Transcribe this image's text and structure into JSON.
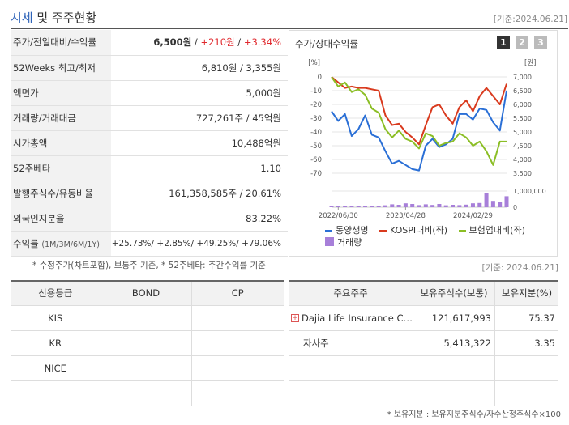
{
  "header": {
    "title_part1": "시세",
    "title_part2": " 및 주주현황",
    "date": "[기준:2024.06.21]"
  },
  "quote_rows": [
    {
      "label": "주가/전일대비/수익률",
      "price": "6,500원",
      "change": "+210원",
      "rate": "+3.34%"
    },
    {
      "label": "52Weeks 최고/최저",
      "value": "6,810원 / 3,355원"
    },
    {
      "label": "액면가",
      "value": "5,000원"
    },
    {
      "label": "거래량/거래대금",
      "value": "727,261주 / 45억원"
    },
    {
      "label": "시가총액",
      "value": "10,488억원"
    },
    {
      "label": "52주베타",
      "value": "1.10"
    },
    {
      "label": "발행주식수/유동비율",
      "value": "161,358,585주 / 20.61%"
    },
    {
      "label": "외국인지분율",
      "value": "83.22%"
    },
    {
      "label": "수익률",
      "label_sub": "(1M/3M/6M/1Y)",
      "value": "+25.73%/ +2.85%/ +49.25%/ +79.06%"
    }
  ],
  "sep": " / ",
  "note1": "* 수정주가(차트포함), 보통주 기준, * 52주베타: 주간수익률 기준",
  "chart_panel": {
    "title": "주가/상대수익률",
    "pages": [
      "1",
      "2",
      "3"
    ],
    "selected_page": "1"
  },
  "chart_data": {
    "type": "line",
    "left_axis_label": "[%]",
    "right_axis_label": "[원]",
    "left_ticks": [
      "0",
      "-10",
      "-20",
      "-30",
      "-40",
      "-50",
      "-60",
      "-70"
    ],
    "left_ylim": [
      -70,
      0
    ],
    "right_ticks": [
      "7,000",
      "6,500",
      "6,000",
      "5,500",
      "5,000",
      "4,500",
      "4,000",
      "3,500"
    ],
    "right_ylim": [
      3500,
      7000
    ],
    "volume_ticks": [
      "1,000,000",
      "0"
    ],
    "volume_ylim": [
      0,
      1000000
    ],
    "x_ticks": [
      "2022/06/30",
      "2023/04/28",
      "2024/02/29"
    ],
    "x_tick_index": [
      1,
      11,
      21
    ],
    "series": [
      {
        "name": "동양생명",
        "color": "#2a6fd6",
        "values": [
          -25,
          -32,
          -27,
          -43,
          -38,
          -28,
          -42,
          -44,
          -54,
          -63,
          -61,
          -64,
          -67,
          -68,
          -50,
          -45,
          -51,
          -49,
          -45,
          -27,
          -27,
          -31,
          -23,
          -24,
          -33,
          -39,
          -10
        ]
      },
      {
        "name": "KOSPI대비(좌)",
        "color": "#d93a1e",
        "values": [
          0,
          -4,
          -8,
          -7,
          -8,
          -8,
          -9,
          -10,
          -28,
          -35,
          -34,
          -40,
          -44,
          -49,
          -35,
          -22,
          -20,
          -28,
          -34,
          -22,
          -17,
          -25,
          -14,
          -8,
          -14,
          -20,
          -5
        ]
      },
      {
        "name": "보험업대비(좌)",
        "color": "#8bbe25",
        "values": [
          0,
          -7,
          -4,
          -11,
          -9,
          -13,
          -23,
          -26,
          -38,
          -44,
          -39,
          -45,
          -47,
          -52,
          -41,
          -43,
          -50,
          -48,
          -47,
          -41,
          -44,
          -50,
          -47,
          -54,
          -64,
          -47,
          -47
        ]
      }
    ],
    "volume": {
      "name": "거래량",
      "color": "#a77fd9",
      "values": [
        45000,
        60000,
        50000,
        45000,
        80000,
        70000,
        90000,
        70000,
        120000,
        180000,
        150000,
        240000,
        200000,
        130000,
        180000,
        140000,
        200000,
        120000,
        150000,
        130000,
        160000,
        240000,
        260000,
        900000,
        390000,
        320000,
        680000
      ]
    },
    "grid": true,
    "legend_position": "bottom"
  },
  "date2": "[기준: 2024.06.21]",
  "credit": {
    "headers": [
      "신용등급",
      "BOND",
      "CP"
    ],
    "rows": [
      [
        "KIS",
        "",
        ""
      ],
      [
        "KR",
        "",
        ""
      ],
      [
        "NICE",
        "",
        ""
      ],
      [
        "",
        "",
        ""
      ]
    ]
  },
  "holders": {
    "headers": [
      "주요주주",
      "보유주식수(보통)",
      "보유지분(%)"
    ],
    "rows": [
      {
        "name": "Dajia Life Insurance C…",
        "shares": "121,617,993",
        "pct": "75.37"
      },
      {
        "name": "자사주",
        "shares": "5,413,322",
        "pct": "3.35"
      },
      {
        "name": "",
        "shares": "",
        "pct": ""
      },
      {
        "name": "",
        "shares": "",
        "pct": ""
      }
    ]
  },
  "note2": "* 보유지분 : 보유지분주식수/자수산정주식수×100"
}
